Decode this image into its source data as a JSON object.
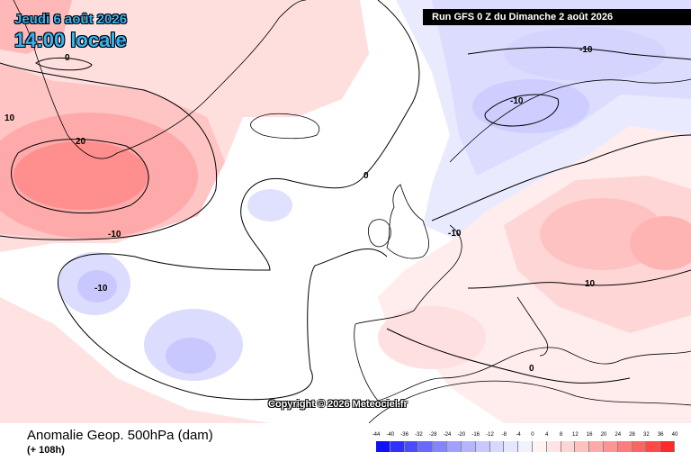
{
  "map": {
    "valid_date": "Jeudi 6 août 2026",
    "valid_time": "14:00 locale",
    "run_banner": "Run GFS 0 Z du Dimanche 2 août 2026",
    "copyright": "Copyright © 2026 Meteociel.fr",
    "contour_labels": [
      "0",
      "10",
      "20",
      "-10",
      "0",
      "-10",
      "-10",
      "-10",
      "-10",
      "10",
      "0"
    ]
  },
  "legend": {
    "title": "Anomalie Geop. 500hPa (dam)",
    "lead": "(+ 108h)",
    "ticks": [
      "-44",
      "-40",
      "-36",
      "-32",
      "-28",
      "-24",
      "-20",
      "-16",
      "-12",
      "-8",
      "-4",
      "0",
      "4",
      "8",
      "12",
      "16",
      "20",
      "24",
      "28",
      "32",
      "36",
      "40"
    ],
    "colors": [
      "#1010ff",
      "#3030ff",
      "#4c4cff",
      "#6868ff",
      "#8484ff",
      "#a0a0ff",
      "#b4b4ff",
      "#c8c8ff",
      "#d8d8ff",
      "#e6e6ff",
      "#f2f2ff",
      "#fff2f2",
      "#ffe4e4",
      "#ffd4d4",
      "#ffc0c0",
      "#ffaaaa",
      "#ff9494",
      "#ff7c7c",
      "#ff6464",
      "#ff4848",
      "#ff2a2a"
    ]
  }
}
